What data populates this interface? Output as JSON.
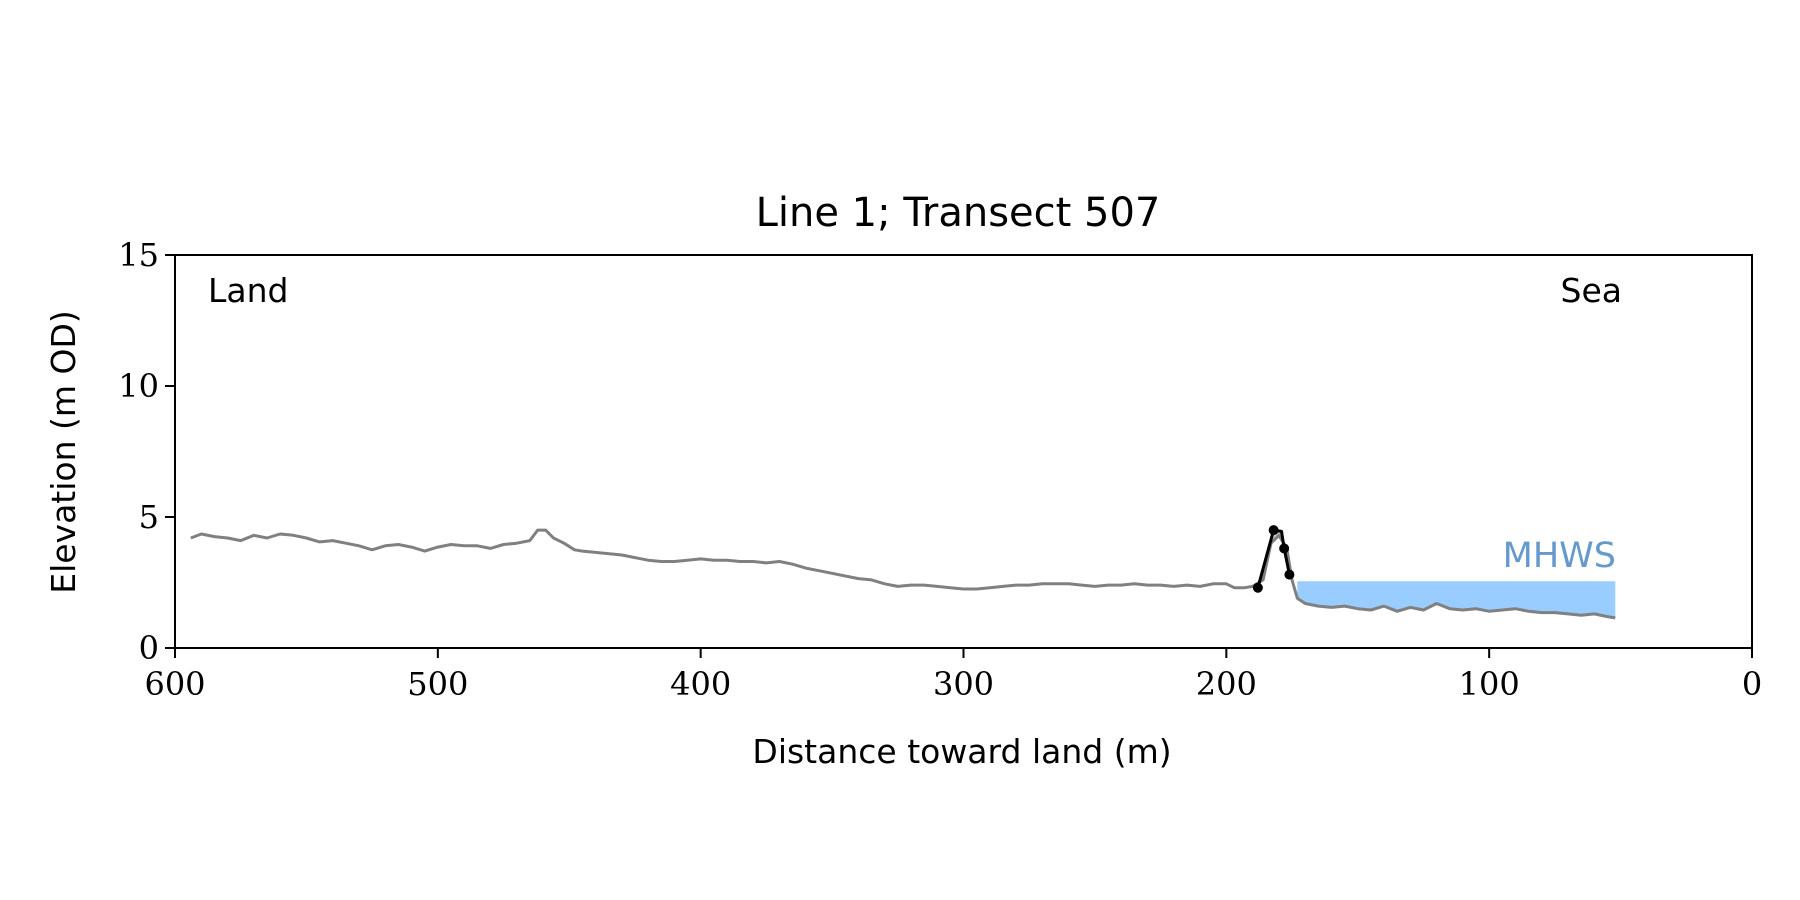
{
  "chart_data": {
    "type": "line",
    "title": "Line 1; Transect 507",
    "xlabel": "Distance toward land (m)",
    "ylabel": "Elevation (m OD)",
    "xlim": [
      600,
      0
    ],
    "ylim": [
      0,
      15
    ],
    "x_ticks": [
      "600",
      "500",
      "400",
      "300",
      "200",
      "100",
      "0"
    ],
    "y_ticks": [
      "0",
      "5",
      "10",
      "15"
    ],
    "grid": false,
    "annotations": {
      "land_label": "Land",
      "sea_label": "Sea",
      "mhws_label": "MHWS"
    },
    "colors": {
      "profile": "#808080",
      "dune": "#000000",
      "dune_fill": "#c8c8c8",
      "water": "#99ccff",
      "mhws_text": "#6699cc"
    },
    "mhws_level": 2.55,
    "mhws_range": [
      173,
      52
    ],
    "profile": {
      "x": [
        594,
        590,
        585,
        580,
        575,
        570,
        565,
        560,
        555,
        550,
        545,
        540,
        535,
        530,
        525,
        520,
        515,
        510,
        505,
        500,
        495,
        490,
        485,
        480,
        475,
        470,
        465,
        462,
        459,
        456,
        452,
        448,
        445,
        440,
        430,
        420,
        415,
        410,
        405,
        400,
        395,
        390,
        385,
        380,
        375,
        370,
        365,
        360,
        355,
        350,
        345,
        340,
        335,
        330,
        325,
        320,
        315,
        310,
        305,
        300,
        295,
        290,
        285,
        280,
        275,
        270,
        265,
        260,
        255,
        250,
        245,
        240,
        235,
        230,
        225,
        220,
        215,
        210,
        205,
        200,
        197,
        193,
        190,
        186,
        183,
        180,
        177,
        175,
        173,
        170,
        165,
        160,
        155,
        150,
        145,
        140,
        135,
        130,
        125,
        120,
        115,
        110,
        105,
        100,
        95,
        90,
        85,
        80,
        75,
        70,
        65,
        60,
        55,
        52
      ],
      "y": [
        4.2,
        4.35,
        4.25,
        4.2,
        4.1,
        4.3,
        4.2,
        4.35,
        4.3,
        4.2,
        4.05,
        4.1,
        4.0,
        3.9,
        3.75,
        3.9,
        3.95,
        3.85,
        3.7,
        3.85,
        3.95,
        3.9,
        3.9,
        3.8,
        3.95,
        4.0,
        4.1,
        4.5,
        4.5,
        4.2,
        4.0,
        3.75,
        3.7,
        3.65,
        3.55,
        3.35,
        3.3,
        3.3,
        3.35,
        3.4,
        3.35,
        3.35,
        3.3,
        3.3,
        3.25,
        3.3,
        3.2,
        3.05,
        2.95,
        2.85,
        2.75,
        2.65,
        2.6,
        2.45,
        2.35,
        2.4,
        2.4,
        2.35,
        2.3,
        2.25,
        2.25,
        2.3,
        2.35,
        2.4,
        2.4,
        2.45,
        2.45,
        2.45,
        2.4,
        2.35,
        2.4,
        2.4,
        2.45,
        2.4,
        2.4,
        2.35,
        2.4,
        2.35,
        2.45,
        2.45,
        2.3,
        2.3,
        2.35,
        2.6,
        4.0,
        4.3,
        3.8,
        2.6,
        1.9,
        1.7,
        1.6,
        1.55,
        1.6,
        1.5,
        1.45,
        1.6,
        1.4,
        1.55,
        1.45,
        1.7,
        1.5,
        1.45,
        1.5,
        1.4,
        1.45,
        1.5,
        1.4,
        1.35,
        1.35,
        1.3,
        1.25,
        1.3,
        1.2,
        1.15
      ]
    },
    "dune": {
      "x": [
        188,
        182,
        179,
        178,
        176
      ],
      "y": [
        2.3,
        4.5,
        4.45,
        3.8,
        2.8
      ]
    },
    "dune_points": {
      "x": [
        188,
        182,
        178,
        176
      ],
      "y": [
        2.3,
        4.5,
        3.8,
        2.8
      ]
    }
  }
}
